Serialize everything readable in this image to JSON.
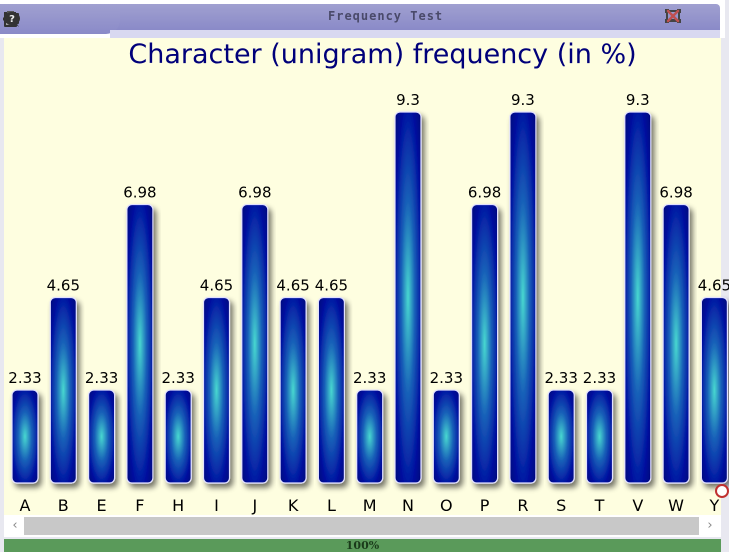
{
  "window": {
    "title": "Frequency Test",
    "toolbar_icons": [
      "image-icon",
      "gear-icon",
      "list-icon",
      "clipboard-icon",
      "help-icon"
    ],
    "controls": [
      "minimize-icon",
      "maximize-icon",
      "close-icon"
    ]
  },
  "status": {
    "zoom": "100%",
    "progress": 1.0
  },
  "colors": {
    "bar_edge": "#000080",
    "bar_center": "#40d0d0",
    "title": "#00007a",
    "background": "#fefee0"
  },
  "chart_data": {
    "type": "bar",
    "title": "Character (unigram) frequency (in %)",
    "xlabel": "",
    "ylabel": "",
    "ylim": [
      0,
      10.5
    ],
    "grid": false,
    "categories": [
      "A",
      "B",
      "E",
      "F",
      "H",
      "I",
      "J",
      "K",
      "L",
      "M",
      "N",
      "O",
      "P",
      "R",
      "S",
      "T",
      "V",
      "W",
      "Y"
    ],
    "values": [
      2.33,
      4.65,
      2.33,
      6.98,
      2.33,
      4.65,
      6.98,
      4.65,
      4.65,
      2.33,
      9.3,
      2.33,
      6.98,
      9.3,
      2.33,
      2.33,
      9.3,
      6.98,
      4.65
    ],
    "labels": [
      "2.33",
      "4.65",
      "2.33",
      "6.98",
      "2.33",
      "4.65",
      "6.98",
      "4.65",
      "4.65",
      "2.33",
      "9.3",
      "2.33",
      "6.98",
      "9.3",
      "2.33",
      "2.33",
      "9.3",
      "6.98",
      "4.65"
    ]
  }
}
